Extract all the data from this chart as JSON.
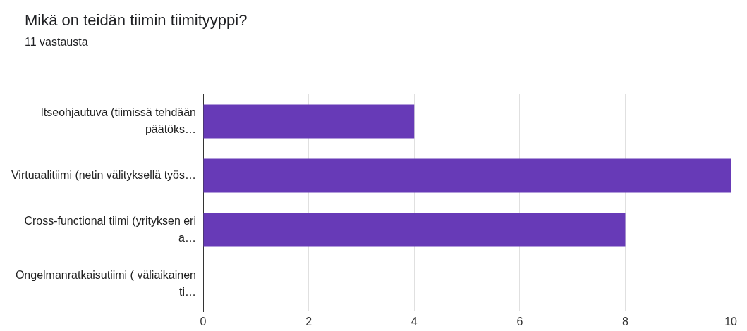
{
  "chart_data": {
    "type": "bar",
    "orientation": "horizontal",
    "title": "Mikä on teidän tiimin tiimityyppi?",
    "subtitle": "11 vastausta",
    "categories": [
      "Itseohjautuva (tiimissä tehdään päätöks…",
      "Virtuaalitiimi (netin välityksellä työs…",
      "Cross-functional tiimi (yrityksen eri a…",
      "Ongelmanratkaisutiimi ( väliaikainen ti…"
    ],
    "values": [
      4,
      10,
      8,
      0
    ],
    "color": "#673ab7",
    "xlim": [
      0,
      10
    ],
    "xticks": [
      0,
      2,
      4,
      6,
      8,
      10
    ],
    "grid": "x",
    "legend": false
  }
}
